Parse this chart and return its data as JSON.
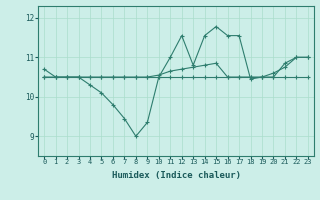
{
  "xlabel": "Humidex (Indice chaleur)",
  "background_color": "#cceee8",
  "line_color": "#2e7d6e",
  "grid_color": "#aaddcc",
  "x_ticks": [
    0,
    1,
    2,
    3,
    4,
    5,
    6,
    7,
    8,
    9,
    10,
    11,
    12,
    13,
    14,
    15,
    16,
    17,
    18,
    19,
    20,
    21,
    22,
    23
  ],
  "ylim": [
    8.5,
    12.3
  ],
  "yticks": [
    9,
    10,
    11,
    12
  ],
  "series1": [
    10.7,
    10.5,
    10.5,
    10.5,
    10.3,
    10.1,
    9.8,
    9.45,
    9.0,
    9.35,
    10.5,
    11.0,
    11.55,
    10.8,
    11.55,
    11.78,
    11.55,
    11.55,
    10.45,
    10.5,
    10.5,
    10.85,
    11.0,
    11.0
  ],
  "series2": [
    10.5,
    10.5,
    10.5,
    10.5,
    10.5,
    10.5,
    10.5,
    10.5,
    10.5,
    10.5,
    10.55,
    10.65,
    10.7,
    10.75,
    10.8,
    10.85,
    10.5,
    10.5,
    10.5,
    10.5,
    10.6,
    10.75,
    11.0,
    11.0
  ],
  "series3": [
    10.5,
    10.5,
    10.5,
    10.5,
    10.5,
    10.5,
    10.5,
    10.5,
    10.5,
    10.5,
    10.5,
    10.5,
    10.5,
    10.5,
    10.5,
    10.5,
    10.5,
    10.5,
    10.5,
    10.5,
    10.5,
    10.5,
    10.5,
    10.5
  ]
}
